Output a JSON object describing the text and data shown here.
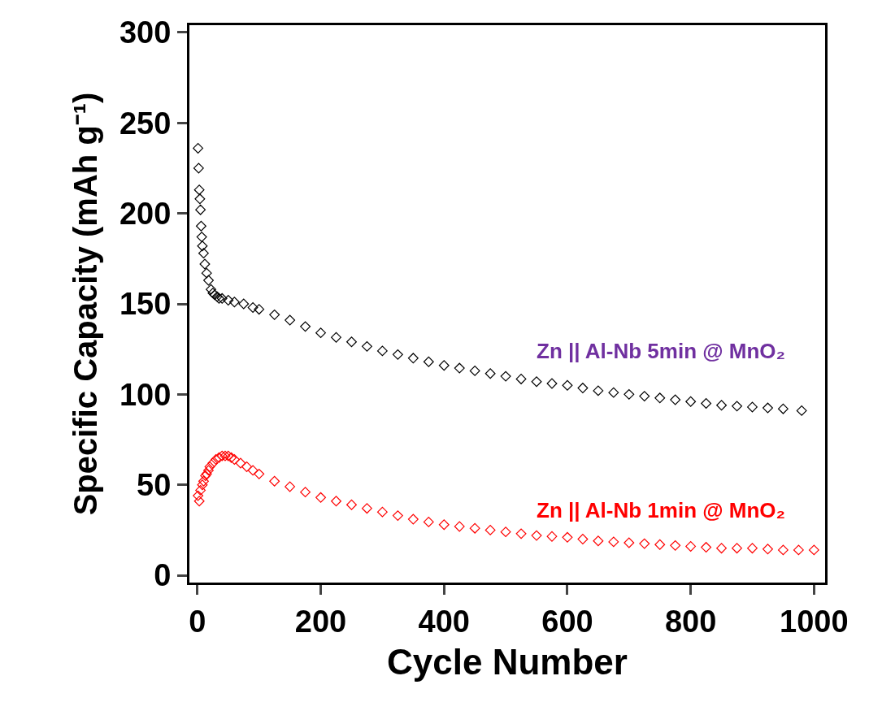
{
  "chart_data": {
    "type": "scatter",
    "xlabel": "Cycle Number",
    "ylabel": "Specific Capacity (mAh g⁻¹)",
    "marker": "diamond",
    "xlim": [
      -13,
      1018
    ],
    "ylim": [
      -4,
      304
    ],
    "xticks": [
      0,
      200,
      400,
      600,
      800,
      1000
    ],
    "yticks": [
      0,
      50,
      100,
      150,
      200,
      250,
      300
    ],
    "series": [
      {
        "name": "Zn || Al-Nb 5min @ MnO₂",
        "color": "#000000",
        "x": [
          1,
          2,
          3,
          4,
          5,
          6,
          7,
          8,
          10,
          12,
          15,
          18,
          22,
          25,
          28,
          32,
          35,
          40,
          50,
          60,
          75,
          90,
          100,
          125,
          150,
          175,
          200,
          225,
          250,
          275,
          300,
          325,
          350,
          375,
          400,
          425,
          450,
          475,
          500,
          525,
          550,
          575,
          600,
          625,
          650,
          675,
          700,
          725,
          750,
          775,
          800,
          825,
          850,
          875,
          900,
          925,
          950,
          980
        ],
        "values": [
          236,
          225,
          213,
          208,
          202,
          193,
          187,
          182,
          178,
          172,
          167,
          163,
          158,
          156,
          155,
          154,
          153,
          153,
          152,
          151,
          150,
          148,
          147,
          144,
          141,
          137.5,
          134,
          131.5,
          129,
          126.5,
          124,
          122,
          120,
          118,
          116,
          114.5,
          113,
          111.5,
          110,
          108.5,
          107,
          106,
          105,
          103.5,
          102,
          101,
          100,
          99,
          98,
          97,
          96,
          95,
          94,
          93.5,
          93,
          92.5,
          92,
          91
        ]
      },
      {
        "name": "Zn || Al-Nb 1min @ MnO₂",
        "color": "#ff0000",
        "x": [
          1,
          3,
          5,
          8,
          10,
          13,
          15,
          18,
          20,
          25,
          30,
          35,
          40,
          45,
          50,
          55,
          60,
          70,
          80,
          90,
          100,
          125,
          150,
          175,
          200,
          225,
          250,
          275,
          300,
          325,
          350,
          375,
          400,
          425,
          450,
          475,
          500,
          525,
          550,
          575,
          600,
          625,
          650,
          675,
          700,
          725,
          750,
          775,
          800,
          825,
          850,
          875,
          900,
          925,
          950,
          975,
          1000
        ],
        "values": [
          44,
          41,
          47,
          50,
          52,
          55,
          56,
          58,
          60,
          62,
          64,
          65,
          66,
          66,
          66,
          65,
          64,
          62,
          60,
          58,
          56,
          52,
          49,
          46,
          43,
          41,
          39,
          37,
          35,
          33,
          31,
          29.5,
          28,
          27,
          26,
          25,
          24,
          23,
          22,
          21.5,
          21,
          20,
          19,
          18.5,
          18,
          17.5,
          17,
          16.5,
          16,
          15.5,
          15,
          15,
          15,
          14.5,
          14,
          14,
          14
        ]
      }
    ]
  }
}
